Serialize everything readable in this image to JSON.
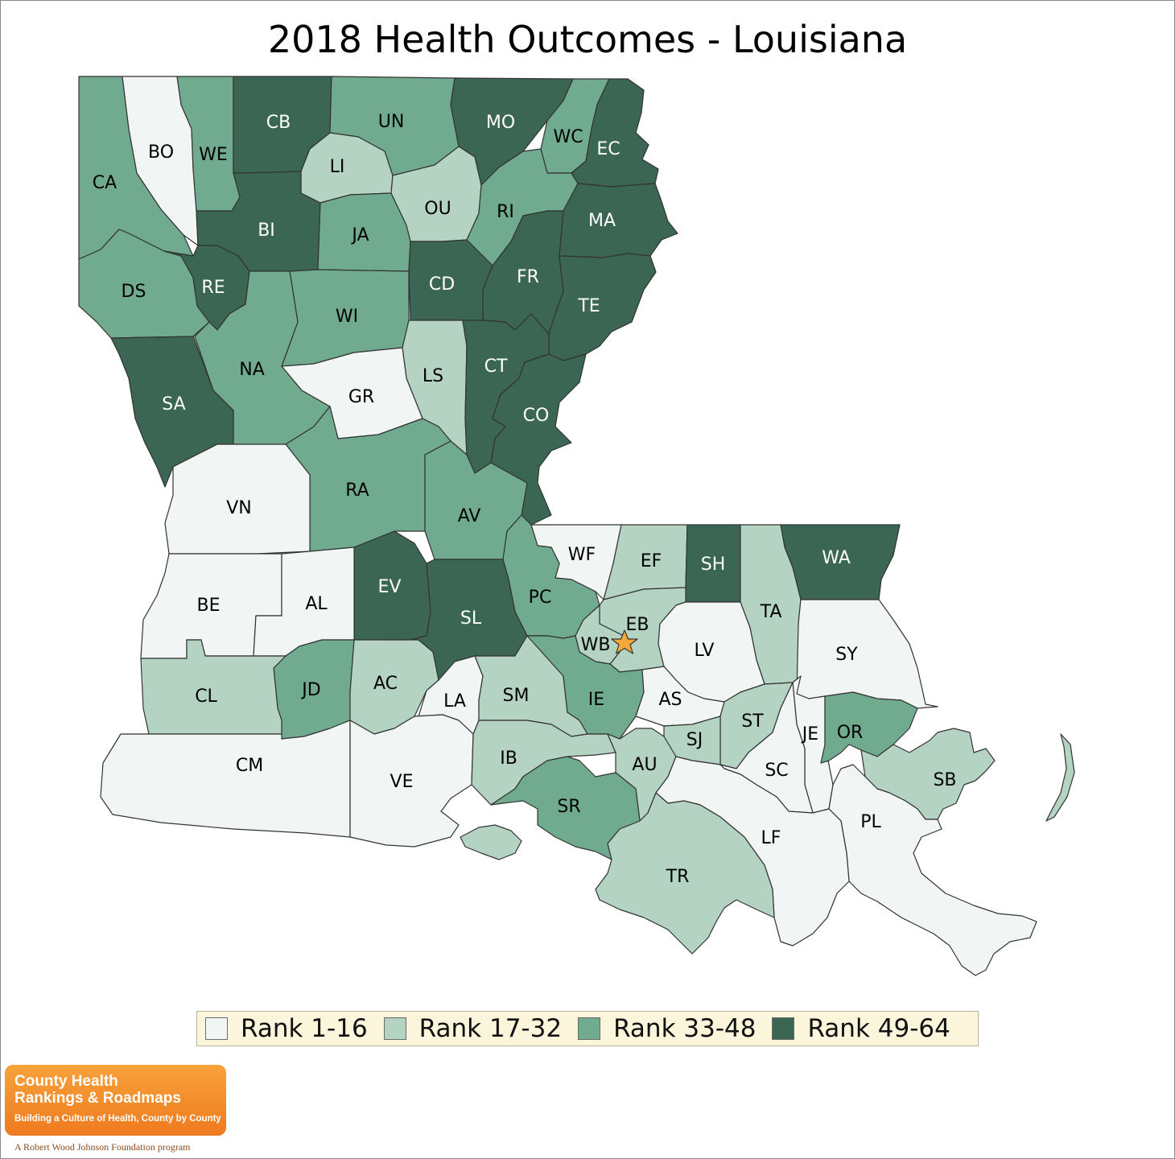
{
  "title": "2018 Health Outcomes - Louisiana",
  "colors": {
    "rank1": "#f1f5f3",
    "rank2": "#b4d3c3",
    "rank3": "#70ab90",
    "rank4": "#3a6653",
    "star": "#f4a93c"
  },
  "legend": [
    {
      "label": "Rank 1-16",
      "color": "#f1f5f3"
    },
    {
      "label": "Rank 17-32",
      "color": "#b4d3c3"
    },
    {
      "label": "Rank 33-48",
      "color": "#70ab90"
    },
    {
      "label": "Rank 49-64",
      "color": "#3a6653"
    }
  ],
  "parishes": [
    {
      "abbr": "CA",
      "tier": 3
    },
    {
      "abbr": "BO",
      "tier": 1
    },
    {
      "abbr": "WE",
      "tier": 3
    },
    {
      "abbr": "CB",
      "tier": 4
    },
    {
      "abbr": "UN",
      "tier": 3
    },
    {
      "abbr": "MO",
      "tier": 4
    },
    {
      "abbr": "WC",
      "tier": 3
    },
    {
      "abbr": "EC",
      "tier": 4
    },
    {
      "abbr": "LI",
      "tier": 2
    },
    {
      "abbr": "OU",
      "tier": 2
    },
    {
      "abbr": "RI",
      "tier": 3
    },
    {
      "abbr": "MA",
      "tier": 4
    },
    {
      "abbr": "BI",
      "tier": 4
    },
    {
      "abbr": "JA",
      "tier": 3
    },
    {
      "abbr": "DS",
      "tier": 3
    },
    {
      "abbr": "RE",
      "tier": 4
    },
    {
      "abbr": "CD",
      "tier": 4
    },
    {
      "abbr": "FR",
      "tier": 4
    },
    {
      "abbr": "TE",
      "tier": 4
    },
    {
      "abbr": "WI",
      "tier": 3
    },
    {
      "abbr": "NA",
      "tier": 3
    },
    {
      "abbr": "LS",
      "tier": 2
    },
    {
      "abbr": "CT",
      "tier": 4
    },
    {
      "abbr": "SA",
      "tier": 4
    },
    {
      "abbr": "GR",
      "tier": 1
    },
    {
      "abbr": "CO",
      "tier": 4
    },
    {
      "abbr": "RA",
      "tier": 3
    },
    {
      "abbr": "VN",
      "tier": 1
    },
    {
      "abbr": "AV",
      "tier": 3
    },
    {
      "abbr": "WF",
      "tier": 1
    },
    {
      "abbr": "EF",
      "tier": 2
    },
    {
      "abbr": "SH",
      "tier": 4
    },
    {
      "abbr": "WA",
      "tier": 4
    },
    {
      "abbr": "EV",
      "tier": 4
    },
    {
      "abbr": "PC",
      "tier": 3
    },
    {
      "abbr": "BE",
      "tier": 1
    },
    {
      "abbr": "AL",
      "tier": 1
    },
    {
      "abbr": "SL",
      "tier": 4
    },
    {
      "abbr": "EB",
      "tier": 2
    },
    {
      "abbr": "TA",
      "tier": 2
    },
    {
      "abbr": "WB",
      "tier": 2
    },
    {
      "abbr": "LV",
      "tier": 1
    },
    {
      "abbr": "SY",
      "tier": 1
    },
    {
      "abbr": "JD",
      "tier": 3
    },
    {
      "abbr": "AC",
      "tier": 2
    },
    {
      "abbr": "CL",
      "tier": 2
    },
    {
      "abbr": "LA",
      "tier": 1
    },
    {
      "abbr": "SM",
      "tier": 2
    },
    {
      "abbr": "IE",
      "tier": 3
    },
    {
      "abbr": "AS",
      "tier": 1
    },
    {
      "abbr": "ST",
      "tier": 2
    },
    {
      "abbr": "JE",
      "tier": 1
    },
    {
      "abbr": "OR",
      "tier": 3
    },
    {
      "abbr": "SJ",
      "tier": 2
    },
    {
      "abbr": "CM",
      "tier": 1
    },
    {
      "abbr": "VE",
      "tier": 1
    },
    {
      "abbr": "IB",
      "tier": 2
    },
    {
      "abbr": "AU",
      "tier": 2
    },
    {
      "abbr": "SC",
      "tier": 1
    },
    {
      "abbr": "SB",
      "tier": 2
    },
    {
      "abbr": "SR",
      "tier": 3
    },
    {
      "abbr": "PL",
      "tier": 1
    },
    {
      "abbr": "LF",
      "tier": 1
    },
    {
      "abbr": "TR",
      "tier": 2
    }
  ],
  "logo": {
    "line1": "County Health",
    "line2": "Rankings & Roadmaps",
    "tagline": "Building a Culture of Health, County by County"
  },
  "footer": "A Robert Wood Johnson Foundation program"
}
